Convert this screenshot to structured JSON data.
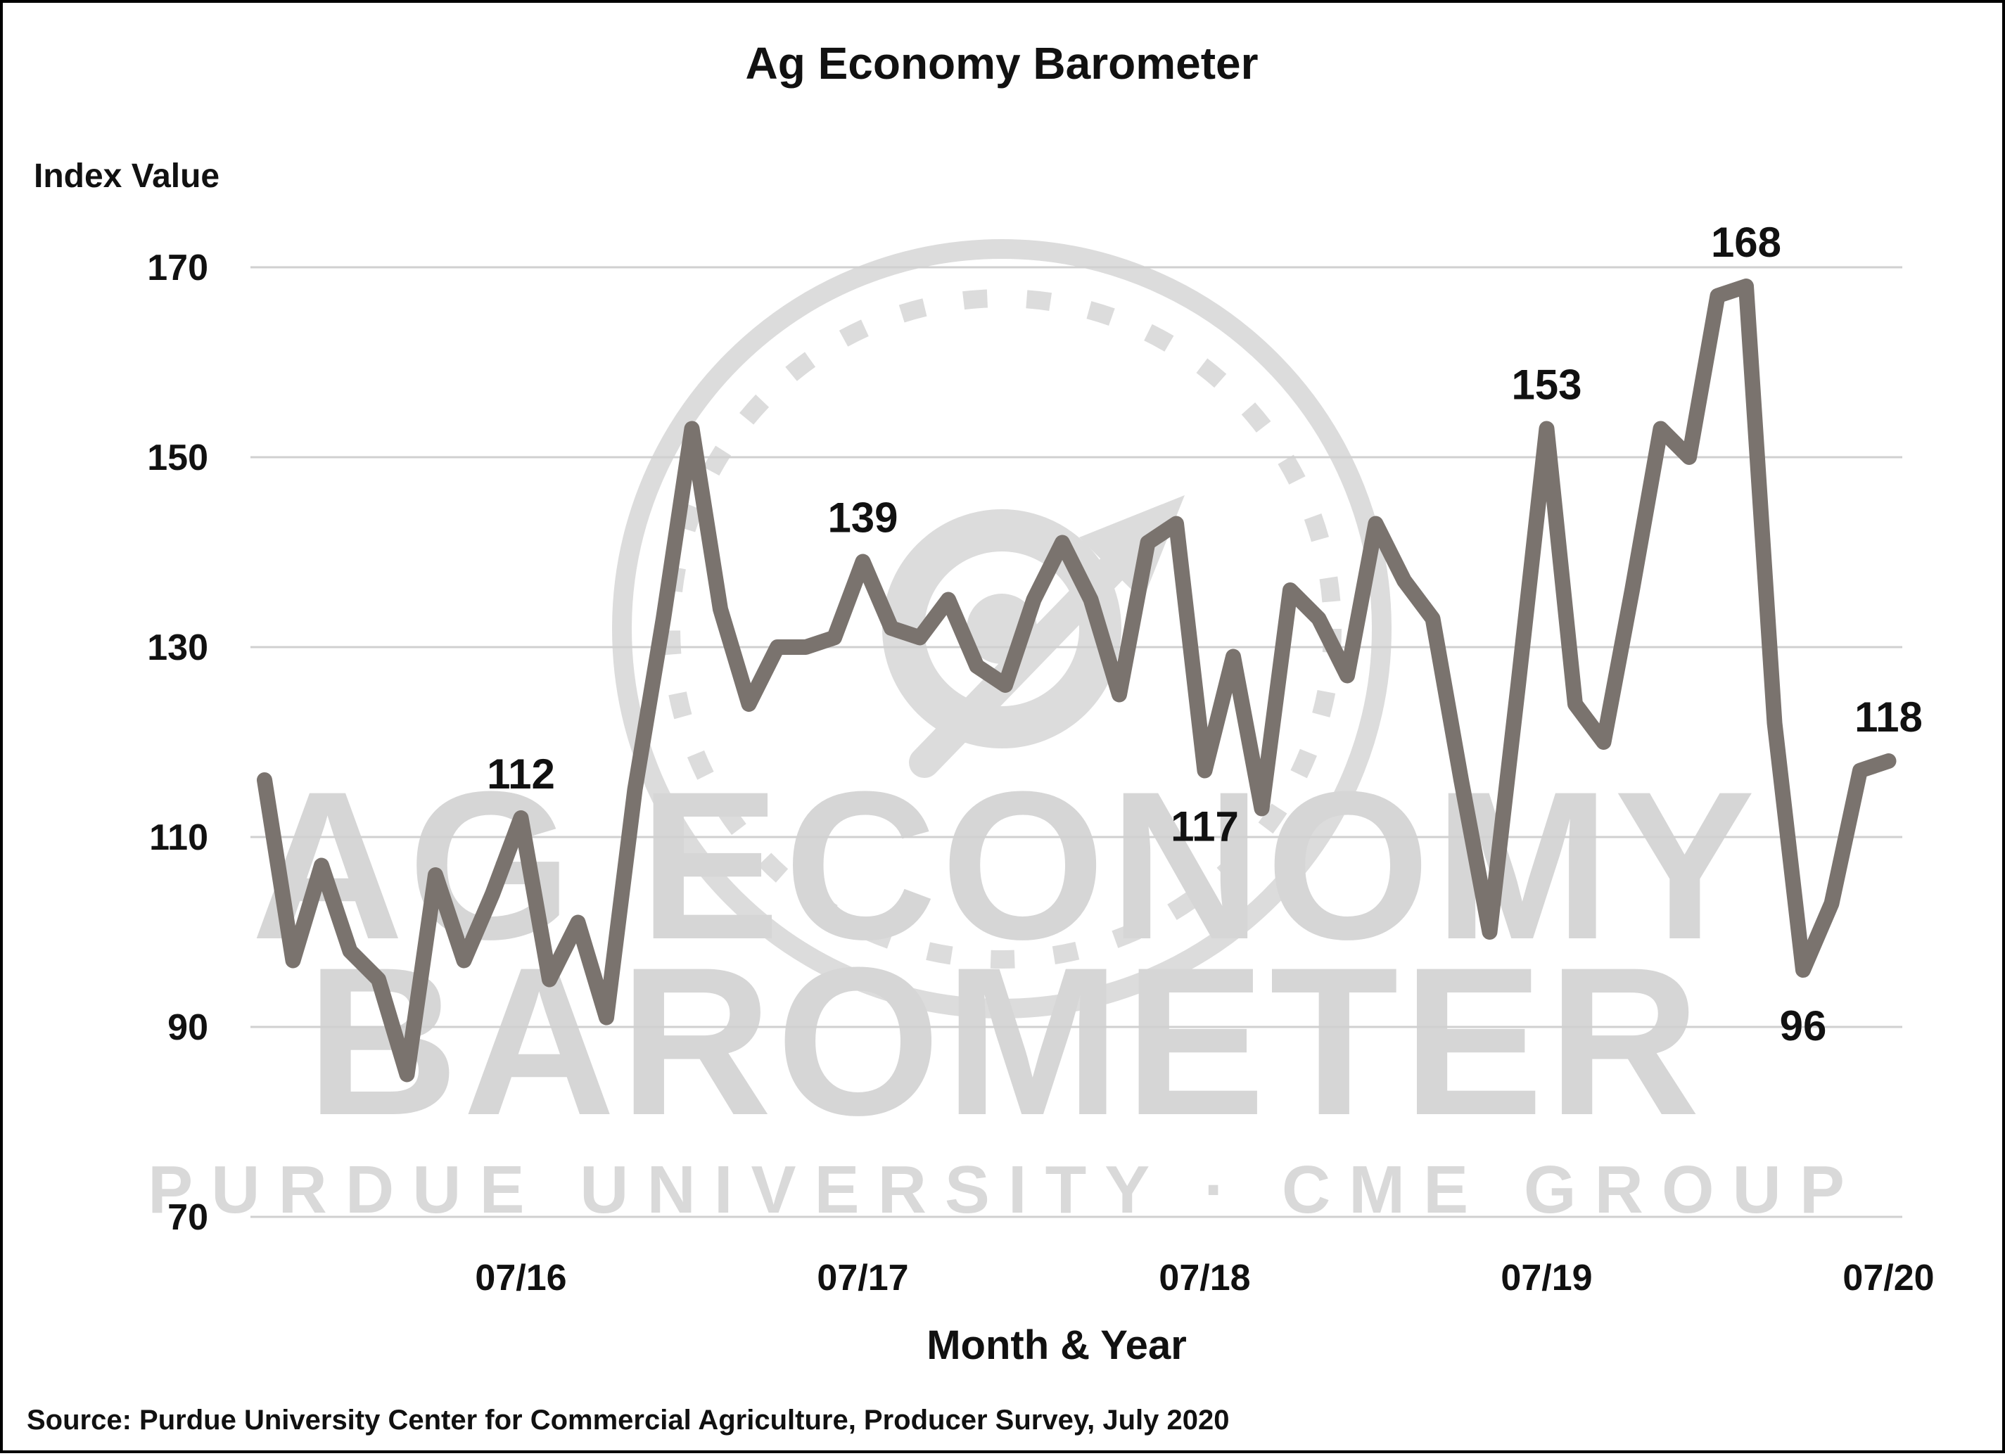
{
  "chart_data": {
    "type": "line",
    "title": "Ag Economy Barometer",
    "ylabel": "Index Value",
    "xlabel": "Month & Year",
    "ylim": [
      70,
      170
    ],
    "yticks": [
      70,
      90,
      110,
      130,
      150,
      170
    ],
    "xticks": [
      {
        "label": "07/16",
        "month_index": 9
      },
      {
        "label": "07/17",
        "month_index": 21
      },
      {
        "label": "07/18",
        "month_index": 33
      },
      {
        "label": "07/19",
        "month_index": 45
      },
      {
        "label": "07/20",
        "month_index": 57
      }
    ],
    "grid": true,
    "legend": "none",
    "line_color": "#7a736e",
    "series": [
      {
        "values": [
          116,
          97,
          107,
          98,
          95,
          85,
          106,
          97,
          104,
          112,
          95,
          101,
          91,
          115,
          133,
          153,
          134,
          124,
          130,
          130,
          131,
          139,
          132,
          131,
          135,
          128,
          126,
          135,
          141,
          135,
          125,
          141,
          143,
          117,
          129,
          113,
          136,
          133,
          127,
          143,
          137,
          133,
          116,
          100,
          126,
          153,
          124,
          120,
          136,
          153,
          150,
          167,
          168,
          122,
          96,
          103,
          117,
          118
        ]
      }
    ],
    "annotations": [
      {
        "month_index": 9,
        "text": "112",
        "position": "above"
      },
      {
        "month_index": 21,
        "text": "139",
        "position": "above"
      },
      {
        "month_index": 33,
        "text": "117",
        "position": "below"
      },
      {
        "month_index": 45,
        "text": "153",
        "position": "above"
      },
      {
        "month_index": 52,
        "text": "168",
        "position": "above"
      },
      {
        "month_index": 54,
        "text": "96",
        "position": "below"
      },
      {
        "month_index": 57,
        "text": "118",
        "position": "above"
      }
    ]
  },
  "source": "Source: Purdue University Center for Commercial Agriculture, Producer Survey, July 2020",
  "watermark": {
    "line1": "AG ECONOMY",
    "line2": "BAROMETER",
    "line3": "PURDUE UNIVERSITY · CME GROUP",
    "icon": "gauge-icon",
    "color": "#d6d6d6"
  }
}
